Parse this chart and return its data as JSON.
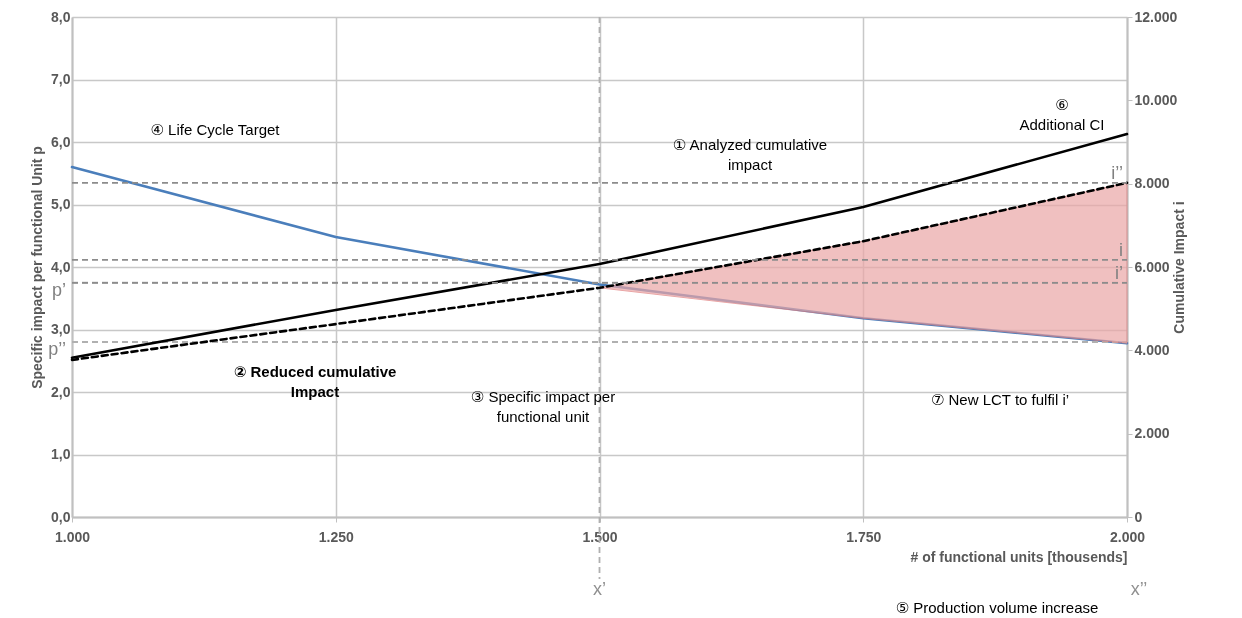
{
  "chart_data": {
    "type": "line",
    "xlabel": "# of functional units [thousends]",
    "ylabel": "Specific impact per functional Unit p",
    "y2label": "Cumulative  Impact i",
    "x": [
      1000,
      1250,
      1500,
      1750,
      2000
    ],
    "xlim": [
      1000,
      2000
    ],
    "xticks": [
      {
        "value": 1000,
        "label": "1.000"
      },
      {
        "value": 1250,
        "label": "1.250"
      },
      {
        "value": 1500,
        "label": "1.500"
      },
      {
        "value": 1750,
        "label": "1.750"
      },
      {
        "value": 2000,
        "label": "2.000"
      }
    ],
    "ylim": [
      0,
      8
    ],
    "yticks": [
      {
        "value": 0,
        "label": "0,0"
      },
      {
        "value": 1,
        "label": "1,0"
      },
      {
        "value": 2,
        "label": "2,0"
      },
      {
        "value": 3,
        "label": "3,0"
      },
      {
        "value": 4,
        "label": "4,0"
      },
      {
        "value": 5,
        "label": "5,0"
      },
      {
        "value": 6,
        "label": "6,0"
      },
      {
        "value": 7,
        "label": "7,0"
      },
      {
        "value": 8,
        "label": "8,0"
      }
    ],
    "y2lim": [
      0,
      12000
    ],
    "y2ticks": [
      0,
      {
        "value": 2000,
        "label": "2.000"
      },
      {
        "value": 4000,
        "label": "4.000"
      },
      {
        "value": 6000,
        "label": "6.000"
      },
      {
        "value": 8000,
        "label": "8.000"
      },
      {
        "value": 10000,
        "label": "10.000"
      },
      {
        "value": 12000,
        "label": "12.000"
      }
    ],
    "series": [
      {
        "color": "#4a7ebb",
        "values": [
          5.6,
          4.48,
          3.72,
          3.18,
          2.78
        ]
      },
      {
        "color": "#000000",
        "axis": "y2",
        "values": [
          3820,
          4970,
          6070,
          7440,
          9190
        ]
      },
      {
        "color": "#000000",
        "axis": "y2",
        "line_style": "dashed",
        "values": [
          3770,
          4630,
          5500,
          6620,
          8020
        ],
        "lower": [
          null,
          null,
          5500,
          4770,
          4170
        ],
        "upper": [
          null,
          null,
          5500,
          6620,
          8020
        ]
      }
    ],
    "ref_lines": [
      {
        "axis": "y",
        "value": 3.75,
        "label": "p’"
      },
      {
        "axis": "y",
        "value": 2.8,
        "label": "p’’"
      },
      {
        "axis": "x",
        "value": 1500,
        "label": "x’"
      },
      {
        "axis": "y2",
        "value": 8020,
        "label": "i’’"
      },
      {
        "axis": "y2",
        "value": 6170,
        "label": "i"
      },
      {
        "axis": "y2",
        "value": 5620,
        "label": "i’"
      }
    ],
    "annotations": [
      "④ Life Cycle Target",
      "① Analyzed cumulative\nimpact",
      "② Reduced cumulative\nImpact",
      "③ Specific impact per\nfunctional unit",
      "⑥\nAdditional CI",
      "⑦ New LCT to fulfil i’",
      "x’’",
      "⑤ Production volume increase"
    ],
    "grid": true,
    "marker": "none"
  }
}
